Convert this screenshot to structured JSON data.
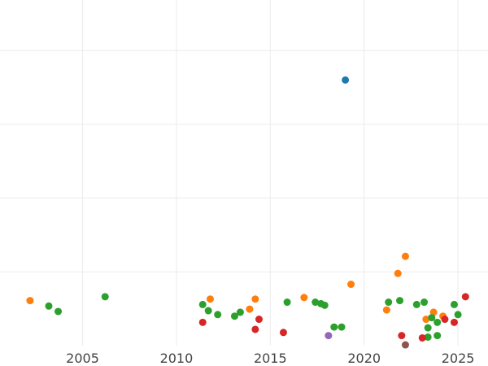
{
  "chart_data": {
    "type": "scatter",
    "title": "",
    "xlabel": "",
    "ylabel": "",
    "xlim": [
      2000.6,
      2026.6
    ],
    "ylim": [
      0,
      445
    ],
    "grid": true,
    "x_ticks": [
      2005,
      2010,
      2015,
      2020,
      2025
    ],
    "x_tick_labels": [
      "2005",
      "2010",
      "2015",
      "2020",
      "2025"
    ],
    "y_gridlines": [
      95,
      190,
      285,
      380
    ],
    "colors": {
      "blue": "#1f77b4",
      "orange": "#ff7f0e",
      "green": "#2ca02c",
      "red": "#d62728",
      "purple": "#9467bd",
      "brown": "#8c564b"
    },
    "series": [
      {
        "color": "blue",
        "points": [
          {
            "x": 2019.0,
            "y": 342
          }
        ]
      },
      {
        "color": "orange",
        "points": [
          {
            "x": 2002.2,
            "y": 58
          },
          {
            "x": 2011.8,
            "y": 60
          },
          {
            "x": 2013.9,
            "y": 47
          },
          {
            "x": 2014.2,
            "y": 60
          },
          {
            "x": 2016.8,
            "y": 62
          },
          {
            "x": 2019.3,
            "y": 79
          },
          {
            "x": 2021.2,
            "y": 46
          },
          {
            "x": 2021.8,
            "y": 93
          },
          {
            "x": 2022.2,
            "y": 115
          },
          {
            "x": 2023.3,
            "y": 34
          },
          {
            "x": 2023.7,
            "y": 43
          },
          {
            "x": 2024.2,
            "y": 38
          }
        ]
      },
      {
        "color": "green",
        "points": [
          {
            "x": 2003.2,
            "y": 51
          },
          {
            "x": 2003.7,
            "y": 44
          },
          {
            "x": 2006.2,
            "y": 63
          },
          {
            "x": 2011.4,
            "y": 53
          },
          {
            "x": 2011.7,
            "y": 45
          },
          {
            "x": 2012.2,
            "y": 40
          },
          {
            "x": 2013.1,
            "y": 38
          },
          {
            "x": 2013.4,
            "y": 43
          },
          {
            "x": 2015.9,
            "y": 56
          },
          {
            "x": 2017.4,
            "y": 56
          },
          {
            "x": 2017.7,
            "y": 54
          },
          {
            "x": 2017.9,
            "y": 52
          },
          {
            "x": 2018.4,
            "y": 24
          },
          {
            "x": 2018.8,
            "y": 24
          },
          {
            "x": 2021.3,
            "y": 56
          },
          {
            "x": 2021.9,
            "y": 58
          },
          {
            "x": 2022.8,
            "y": 53
          },
          {
            "x": 2023.2,
            "y": 56
          },
          {
            "x": 2023.4,
            "y": 23
          },
          {
            "x": 2023.4,
            "y": 11
          },
          {
            "x": 2023.6,
            "y": 36
          },
          {
            "x": 2023.9,
            "y": 13
          },
          {
            "x": 2023.9,
            "y": 30
          },
          {
            "x": 2024.8,
            "y": 53
          },
          {
            "x": 2025.0,
            "y": 40
          }
        ]
      },
      {
        "color": "red",
        "points": [
          {
            "x": 2011.4,
            "y": 30
          },
          {
            "x": 2014.2,
            "y": 21
          },
          {
            "x": 2014.4,
            "y": 34
          },
          {
            "x": 2015.7,
            "y": 17
          },
          {
            "x": 2022.0,
            "y": 13
          },
          {
            "x": 2023.1,
            "y": 10
          },
          {
            "x": 2024.3,
            "y": 34
          },
          {
            "x": 2024.8,
            "y": 30
          },
          {
            "x": 2025.4,
            "y": 63
          }
        ]
      },
      {
        "color": "purple",
        "points": [
          {
            "x": 2018.1,
            "y": 13
          }
        ]
      },
      {
        "color": "brown",
        "points": [
          {
            "x": 2022.2,
            "y": 1
          }
        ]
      }
    ]
  }
}
